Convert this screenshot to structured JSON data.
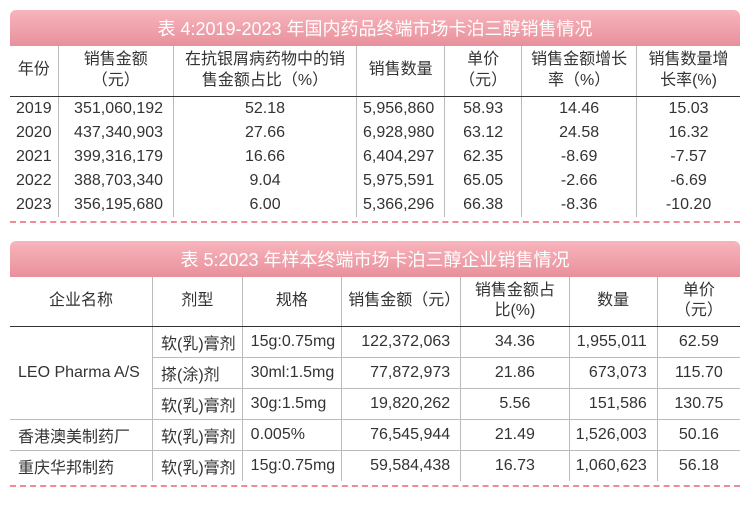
{
  "table4": {
    "title": "表 4:2019-2023 年国内药品终端市场卡泊三醇销售情况",
    "headers": {
      "year": "年份",
      "sales_amount": "销售金额（元）",
      "share": "在抗银屑病药物中的销售金额占比（%）",
      "sales_qty": "销售数量",
      "unit_price": "单价（元）",
      "amount_growth": "销售金额增长率（%）",
      "qty_growth": "销售数量增长率(%)"
    },
    "rows": [
      {
        "year": "2019",
        "sales_amount": "351,060,192",
        "share": "52.18",
        "sales_qty": "5,956,860",
        "unit_price": "58.93",
        "amount_growth": "14.46",
        "qty_growth": "15.03"
      },
      {
        "year": "2020",
        "sales_amount": "437,340,903",
        "share": "27.66",
        "sales_qty": "6,928,980",
        "unit_price": "63.12",
        "amount_growth": "24.58",
        "qty_growth": "16.32"
      },
      {
        "year": "2021",
        "sales_amount": "399,316,179",
        "share": "16.66",
        "sales_qty": "6,404,297",
        "unit_price": "62.35",
        "amount_growth": "-8.69",
        "qty_growth": "-7.57"
      },
      {
        "year": "2022",
        "sales_amount": "388,703,340",
        "share": "9.04",
        "sales_qty": "5,975,591",
        "unit_price": "65.05",
        "amount_growth": "-2.66",
        "qty_growth": "-6.69"
      },
      {
        "year": "2023",
        "sales_amount": "356,195,680",
        "share": "6.00",
        "sales_qty": "5,366,296",
        "unit_price": "66.38",
        "amount_growth": "-8.36",
        "qty_growth": "-10.20"
      }
    ]
  },
  "table5": {
    "title": "表 5:2023 年样本终端市场卡泊三醇企业销售情况",
    "headers": {
      "company": "企业名称",
      "form": "剂型",
      "spec": "规格",
      "sales_amount": "销售金额（元）",
      "amount_share": "销售金额占比(%)",
      "qty": "数量",
      "unit_price": "单价（元）"
    },
    "companies": {
      "leo": "LEO Pharma A/S",
      "hk": "香港澳美制药厂",
      "cq": "重庆华邦制药"
    },
    "rows": [
      {
        "form": "软(乳)膏剂",
        "spec": "15g:0.75mg",
        "sales_amount": "122,372,063",
        "amount_share": "34.36",
        "qty": "1,955,011",
        "unit_price": "62.59"
      },
      {
        "form": "搽(涂)剂",
        "spec": "30ml:1.5mg",
        "sales_amount": "77,872,973",
        "amount_share": "21.86",
        "qty": "673,073",
        "unit_price": "115.70"
      },
      {
        "form": "软(乳)膏剂",
        "spec": "30g:1.5mg",
        "sales_amount": "19,820,262",
        "amount_share": "5.56",
        "qty": "151,586",
        "unit_price": "130.75"
      },
      {
        "form": "软(乳)膏剂",
        "spec": "0.005%",
        "sales_amount": "76,545,944",
        "amount_share": "21.49",
        "qty": "1,526,003",
        "unit_price": "50.16"
      },
      {
        "form": "软(乳)膏剂",
        "spec": "15g:0.75mg",
        "sales_amount": "59,584,438",
        "amount_share": "16.73",
        "qty": "1,060,623",
        "unit_price": "56.18"
      }
    ]
  }
}
